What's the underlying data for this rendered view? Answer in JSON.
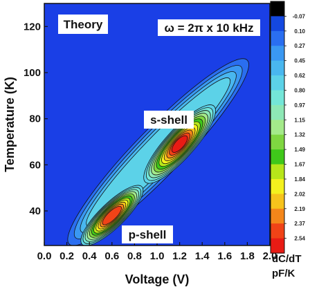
{
  "chart_data": {
    "type": "heatmap",
    "title": "",
    "xlabel": "Voltage (V)",
    "ylabel": "Temperature (K)",
    "xlim": [
      0.0,
      2.0
    ],
    "ylim": [
      25,
      130
    ],
    "x_ticks": [
      "0.0",
      "0.2",
      "0.4",
      "0.6",
      "0.8",
      "1.0",
      "1.2",
      "1.4",
      "1.6",
      "1.8",
      "2.0"
    ],
    "y_ticks": [
      "40",
      "60",
      "80",
      "100",
      "120"
    ],
    "x_tick_values": [
      0.0,
      0.2,
      0.4,
      0.6,
      0.8,
      1.0,
      1.2,
      1.4,
      1.6,
      1.8,
      2.0
    ],
    "y_tick_values": [
      40,
      60,
      80,
      100,
      120
    ],
    "annotations": {
      "theory": "Theory",
      "omega": "ω = 2π x 10 kHz",
      "s_shell": "s-shell",
      "p_shell": "p-shell"
    },
    "colorbar": {
      "labels": [
        "-0.07",
        "0.10",
        "0.27",
        "0.45",
        "0.62",
        "0.80",
        "0.97",
        "1.15",
        "1.32",
        "1.49",
        "1.67",
        "1.84",
        "2.02",
        "2.19",
        "2.37",
        "2.54"
      ],
      "colors": [
        "#000000",
        "#1448e0",
        "#2a6ef0",
        "#3a98f2",
        "#49b7ef",
        "#5cd2e8",
        "#74e6d8",
        "#8ee8b6",
        "#a4ea8a",
        "#7fd641",
        "#3fc81a",
        "#b7e61a",
        "#f4f11e",
        "#f6c31c",
        "#f4861a",
        "#f04317",
        "#e81b14"
      ],
      "unit_line1": "dC/dT",
      "unit_line2": "pF/K"
    },
    "background_color": "#1a3fe6",
    "peaks": [
      {
        "name": "s-shell",
        "voltage": 1.2,
        "temperature": 69,
        "value": 2.54
      },
      {
        "name": "p-shell",
        "voltage": 0.6,
        "temperature": 38,
        "value": 2.54
      }
    ]
  }
}
